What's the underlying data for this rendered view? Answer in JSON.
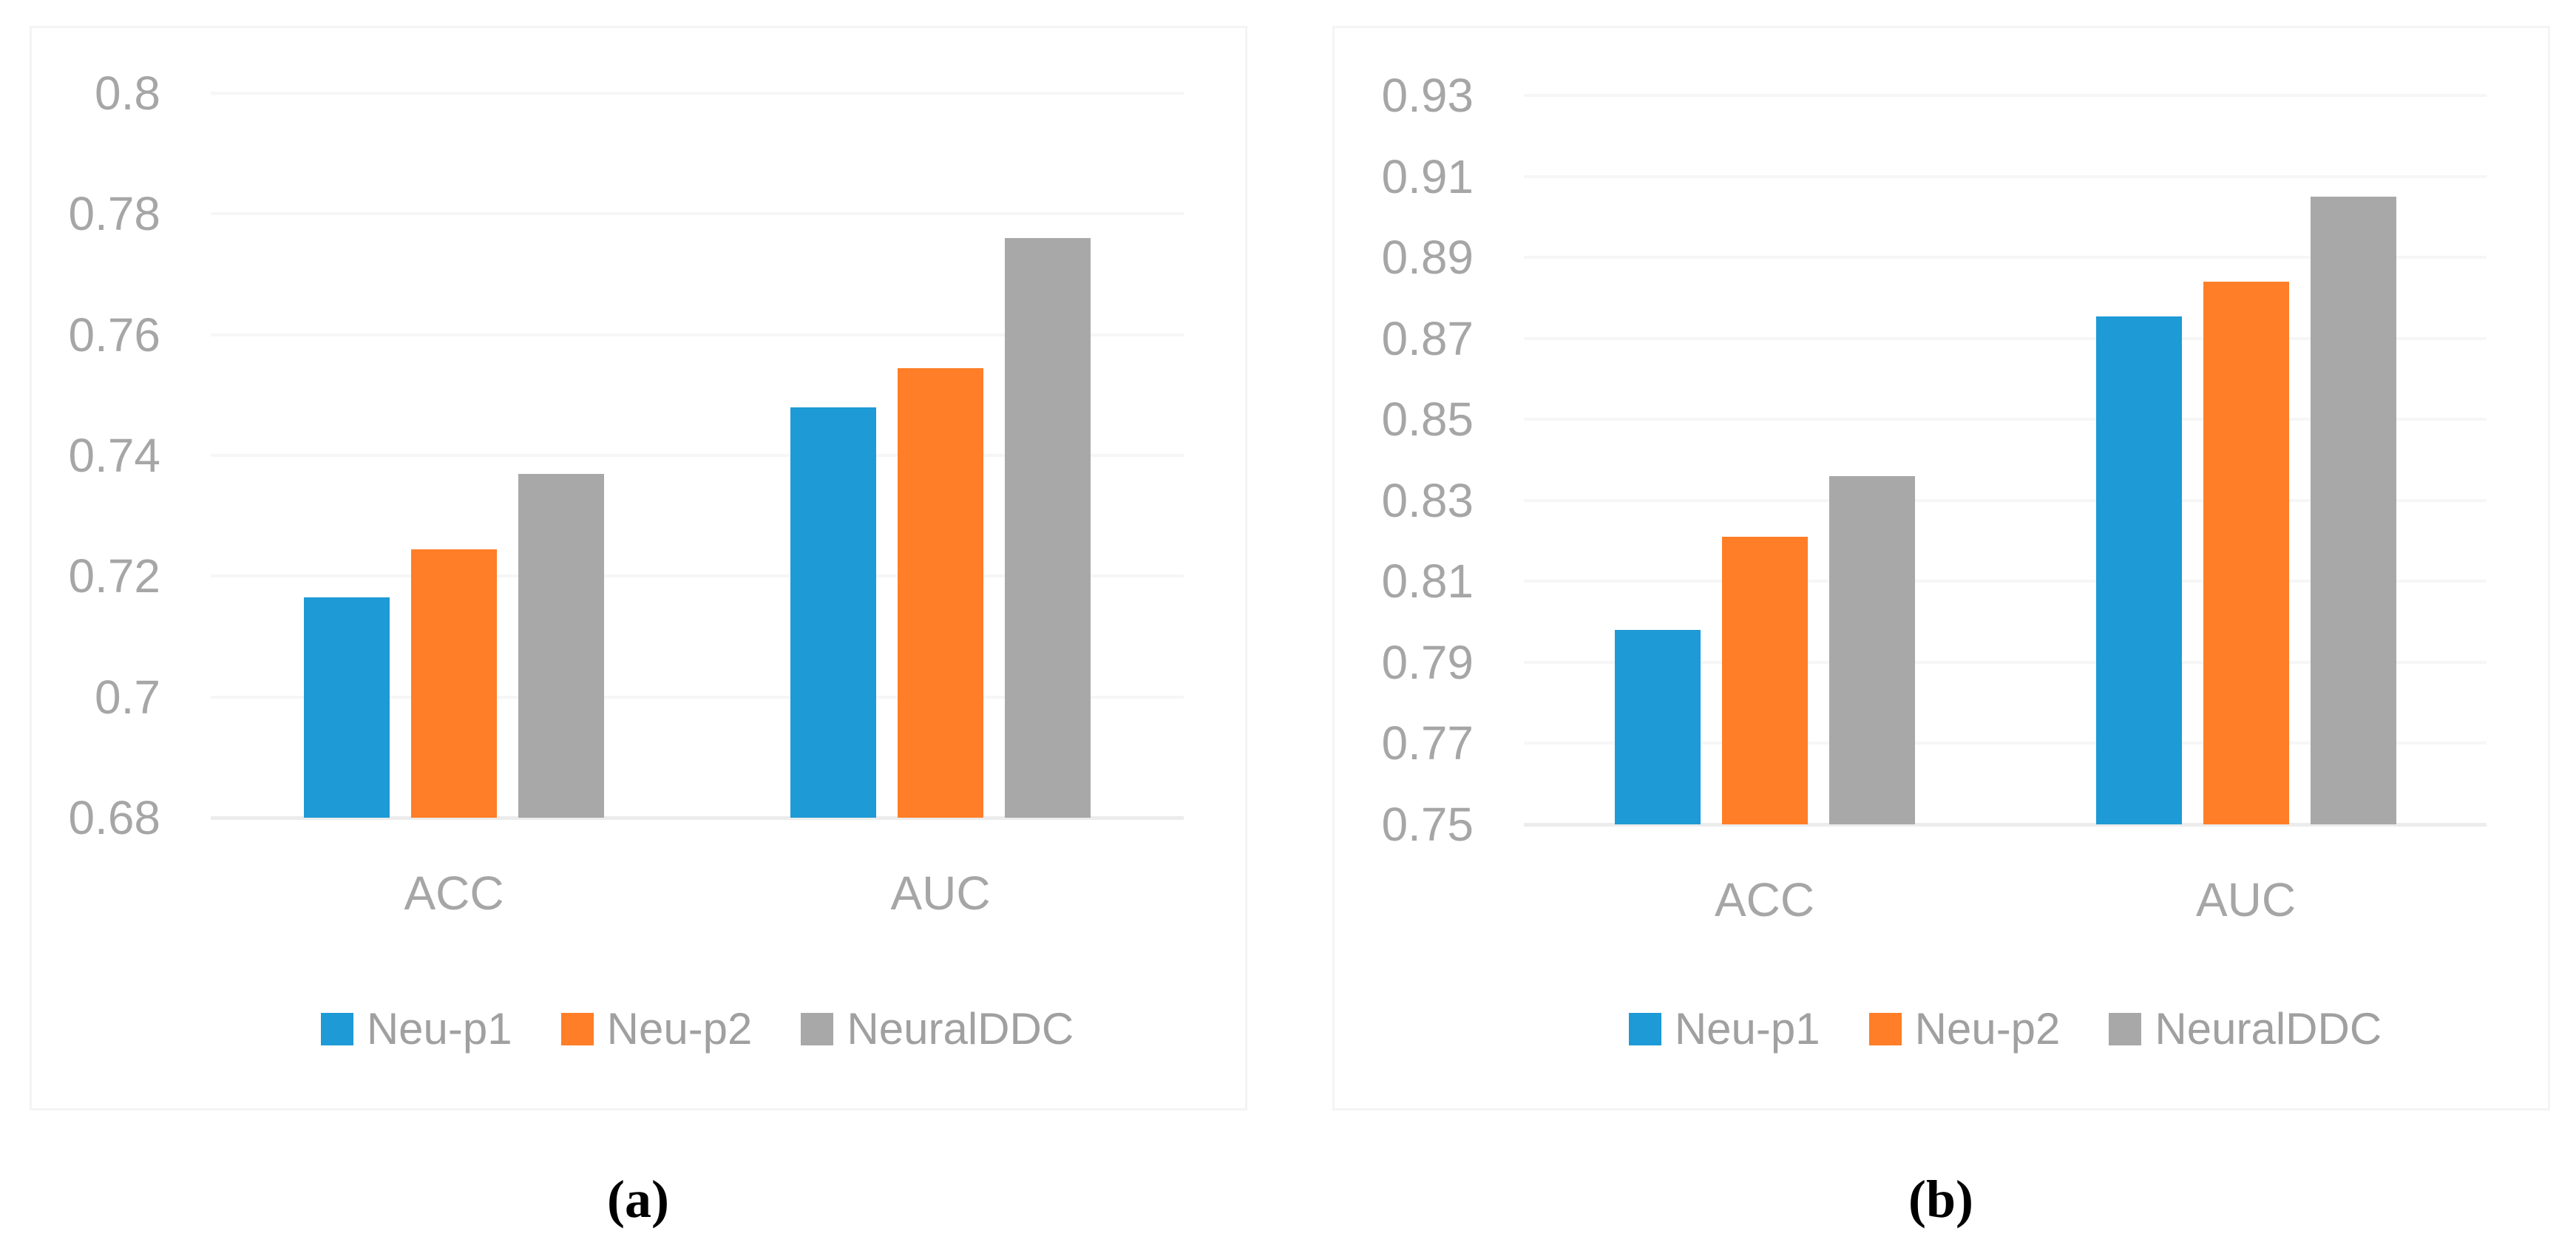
{
  "figure": {
    "captions": {
      "a": "(a)",
      "b": "(b)"
    },
    "colors": {
      "series_blue": "#1E9AD6",
      "series_orange": "#FF7E27",
      "series_gray": "#A8A8A8",
      "tick_text": "#A6A6A6",
      "legend_text": "#A0A0A0",
      "gridline": "#F6F6F6",
      "axis_baseline": "#ECECEC",
      "panel_border": "#F4F4F4",
      "caption_text": "#000000"
    },
    "legend_items": [
      {
        "label": "Neu-p1",
        "color": "#1E9AD6"
      },
      {
        "label": "Neu-p2",
        "color": "#FF7E27"
      },
      {
        "label": "NeuralDDC",
        "color": "#A8A8A8"
      }
    ]
  },
  "chart_data": [
    {
      "type": "bar",
      "panel_label": "(a)",
      "title": "",
      "xlabel": "",
      "ylabel": "",
      "categories": [
        "ACC",
        "AUC"
      ],
      "series": [
        {
          "name": "Neu-p1",
          "color": "#1E9AD6",
          "values": [
            0.7165,
            0.748
          ]
        },
        {
          "name": "Neu-p2",
          "color": "#FF7E27",
          "values": [
            0.7245,
            0.7545
          ]
        },
        {
          "name": "NeuralDDC",
          "color": "#A8A8A8",
          "values": [
            0.737,
            0.776
          ]
        }
      ],
      "ylim": [
        0.68,
        0.8
      ],
      "ytick_step": 0.02,
      "ytick_labels": [
        "0.8",
        "0.78",
        "0.76",
        "0.74",
        "0.72",
        "0.7",
        "0.68"
      ],
      "grid": true,
      "legend_position": "bottom"
    },
    {
      "type": "bar",
      "panel_label": "(b)",
      "title": "",
      "xlabel": "",
      "ylabel": "",
      "categories": [
        "ACC",
        "AUC"
      ],
      "series": [
        {
          "name": "Neu-p1",
          "color": "#1E9AD6",
          "values": [
            0.798,
            0.8755
          ]
        },
        {
          "name": "Neu-p2",
          "color": "#FF7E27",
          "values": [
            0.821,
            0.884
          ]
        },
        {
          "name": "NeuralDDC",
          "color": "#A8A8A8",
          "values": [
            0.836,
            0.905
          ]
        }
      ],
      "ylim": [
        0.75,
        0.93
      ],
      "ytick_step": 0.02,
      "ytick_labels": [
        "0.93",
        "0.91",
        "0.89",
        "0.87",
        "0.85",
        "0.83",
        "0.81",
        "0.79",
        "0.77",
        "0.75"
      ],
      "grid": true,
      "legend_position": "bottom"
    }
  ]
}
